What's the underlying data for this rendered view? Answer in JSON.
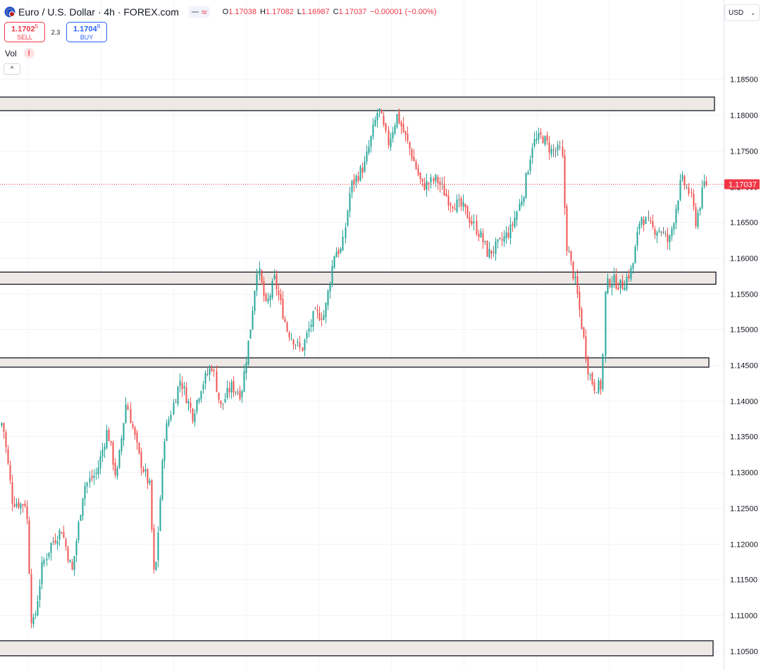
{
  "header": {
    "symbol_title": "Euro / U.S. Dollar · 4h · FOREX.com",
    "pill_wave": "≈",
    "ohlc": {
      "o_label": "O",
      "o_value": "1.17038",
      "h_label": "H",
      "h_value": "1.17082",
      "l_label": "L",
      "l_value": "1.16987",
      "c_label": "C",
      "c_value": "1.17037",
      "change": "−0.00001 (−0.00%)"
    }
  },
  "trade": {
    "sell_price": "1.1702",
    "sell_price_sup": "5",
    "sell_label": "SELL",
    "spread": "2.3",
    "buy_price": "1.1704",
    "buy_price_sup": "8",
    "buy_label": "BUY"
  },
  "indicator": {
    "vol_label": "Vol",
    "warn_glyph": "!"
  },
  "controls": {
    "collapse_glyph": "^",
    "currency": "USD",
    "currency_chevron": "⌄"
  },
  "colors": {
    "up": "#26a69a",
    "down": "#ef5350",
    "doji": "#777777",
    "zone_fill": "#efe9e6",
    "zone_stroke": "#131722",
    "last_price_bg": "#f23645",
    "sell": "#f23645",
    "buy": "#2962ff"
  },
  "chart_data": {
    "type": "candlestick",
    "symbol": "EURUSD",
    "timeframe": "4h",
    "ylim": [
      1.103,
      1.188
    ],
    "y_ticks": [
      "1.18500",
      "1.18000",
      "1.17500",
      "1.17000",
      "1.16500",
      "1.16000",
      "1.15500",
      "1.15000",
      "1.14500",
      "1.14000",
      "1.13500",
      "1.13000",
      "1.12500",
      "1.12000",
      "1.11500",
      "1.11000",
      "1.10500"
    ],
    "last_price": "1.17037",
    "grid": true,
    "zones": [
      {
        "low": 1.1806,
        "high": 1.1825
      },
      {
        "low": 1.1563,
        "high": 1.158
      },
      {
        "low": 1.1447,
        "high": 1.146
      },
      {
        "low": 1.1043,
        "high": 1.1064
      }
    ],
    "price_path": [
      [
        0,
        1.1365
      ],
      [
        6,
        1.137
      ],
      [
        20,
        1.126
      ],
      [
        32,
        1.1255
      ],
      [
        40,
        1.1258
      ],
      [
        48,
        1.108
      ],
      [
        53,
        1.11
      ],
      [
        63,
        1.117
      ],
      [
        75,
        1.12
      ],
      [
        90,
        1.122
      ],
      [
        105,
        1.116
      ],
      [
        122,
        1.128
      ],
      [
        140,
        1.13
      ],
      [
        155,
        1.136
      ],
      [
        168,
        1.129
      ],
      [
        182,
        1.14
      ],
      [
        200,
        1.132
      ],
      [
        215,
        1.128
      ],
      [
        222,
        1.114
      ],
      [
        236,
        1.135
      ],
      [
        258,
        1.143
      ],
      [
        276,
        1.138
      ],
      [
        288,
        1.142
      ],
      [
        304,
        1.145
      ],
      [
        315,
        1.139
      ],
      [
        330,
        1.142
      ],
      [
        345,
        1.141
      ],
      [
        358,
        1.15
      ],
      [
        368,
        1.159
      ],
      [
        380,
        1.153
      ],
      [
        392,
        1.157
      ],
      [
        410,
        1.15
      ],
      [
        430,
        1.147
      ],
      [
        448,
        1.152
      ],
      [
        463,
        1.152
      ],
      [
        478,
        1.161
      ],
      [
        488,
        1.161
      ],
      [
        500,
        1.17
      ],
      [
        520,
        1.173
      ],
      [
        540,
        1.181
      ],
      [
        553,
        1.176
      ],
      [
        566,
        1.18
      ],
      [
        585,
        1.175
      ],
      [
        602,
        1.17
      ],
      [
        622,
        1.171
      ],
      [
        640,
        1.168
      ],
      [
        660,
        1.167
      ],
      [
        685,
        1.163
      ],
      [
        695,
        1.1605
      ],
      [
        712,
        1.162
      ],
      [
        728,
        1.164
      ],
      [
        745,
        1.169
      ],
      [
        758,
        1.176
      ],
      [
        772,
        1.177
      ],
      [
        785,
        1.175
      ],
      [
        800,
        1.175
      ],
      [
        806,
        1.162
      ],
      [
        820,
        1.156
      ],
      [
        838,
        1.144
      ],
      [
        846,
        1.142
      ],
      [
        857,
        1.142
      ],
      [
        862,
        1.156
      ],
      [
        870,
        1.157
      ],
      [
        885,
        1.156
      ],
      [
        900,
        1.1585
      ],
      [
        912,
        1.166
      ],
      [
        928,
        1.164
      ],
      [
        940,
        1.164
      ],
      [
        952,
        1.162
      ],
      [
        962,
        1.167
      ],
      [
        970,
        1.171
      ],
      [
        982,
        1.169
      ],
      [
        990,
        1.165
      ],
      [
        1002,
        1.1704
      ]
    ]
  }
}
